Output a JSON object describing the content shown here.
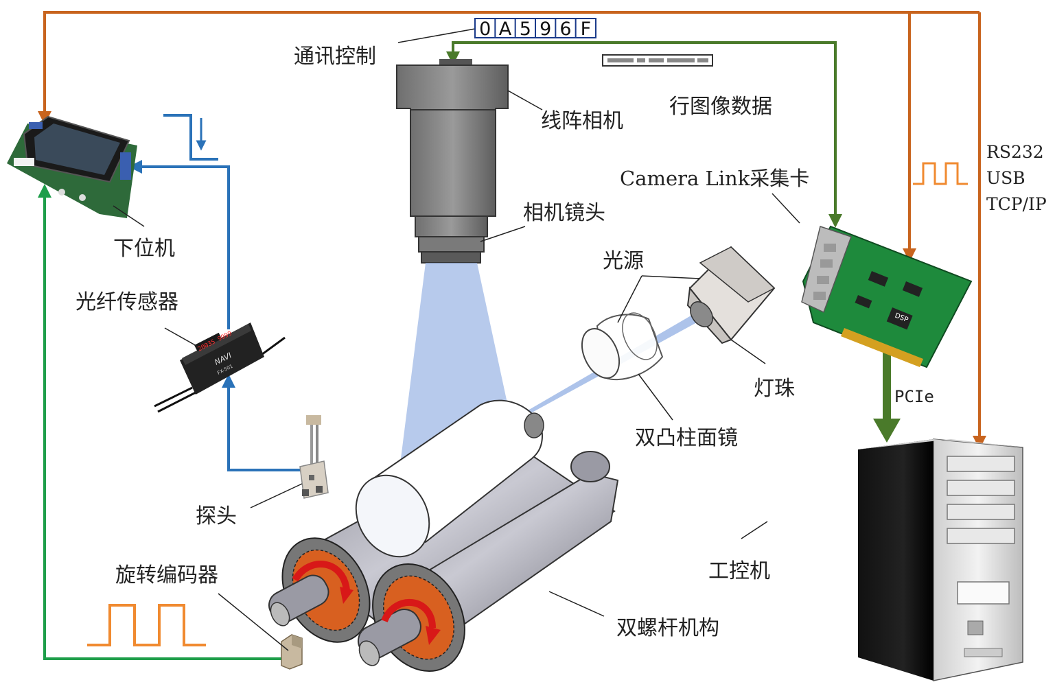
{
  "labels": {
    "comm_control": "通讯控制",
    "hex_code": [
      "0",
      "A",
      "5",
      "9",
      "6",
      "F"
    ],
    "line_camera": "线阵相机",
    "line_image_data": "行图像数据",
    "capture_card": "Camera Link采集卡",
    "camera_lens": "相机镜头",
    "light_source": "光源",
    "lamp_bead": "灯珠",
    "biconvex_lens": "双凸柱面镜",
    "lower_computer": "下位机",
    "fiber_sensor": "光纤传感器",
    "probe": "探头",
    "rotary_encoder": "旋转编码器",
    "twin_screw": "双螺杆机构",
    "ipc": "工控机",
    "pcie": "PCIe",
    "protocols": [
      "RS232",
      "USB",
      "TCP/IP"
    ]
  },
  "device_text": {
    "sensor_brand": "NAVI",
    "sensor_model": "FX-501",
    "sensor_display": "20035 9999",
    "card_chip": "DSP"
  },
  "colors": {
    "orange_line": "#c8641e",
    "blue_line": "#2a72b8",
    "green_line": "#1e9e4a",
    "olive_line": "#4a7a2a",
    "beam": "#9fb8e6",
    "pulse": "#f08a30"
  }
}
